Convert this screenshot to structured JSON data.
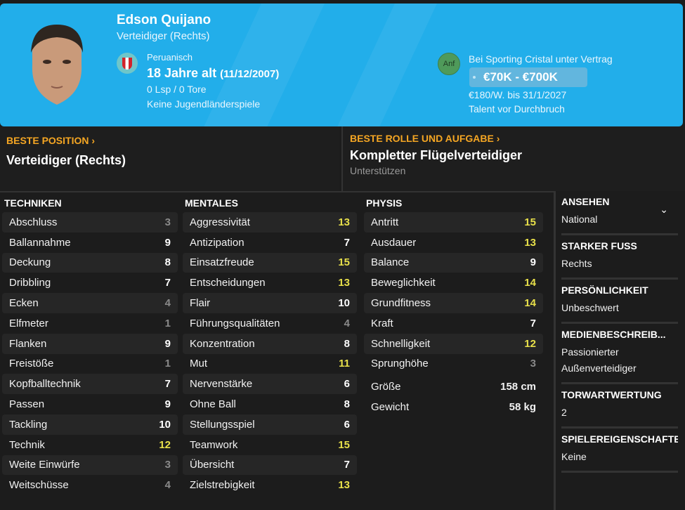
{
  "player": {
    "name": "Edson Quijano",
    "position": "Verteidiger (Rechts)",
    "nationality": "Peruanisch",
    "age": "18 Jahre alt",
    "dob": "(11/12/2007)",
    "caps": "0 Lsp / 0 Tore",
    "youth_caps": "Keine Jugendländerspiele"
  },
  "contract": {
    "badge": "Anf",
    "club": "Bei Sporting Cristal unter Vertrag",
    "value": "€70K - €700K",
    "wage": "€180/W. bis 31/1/2027",
    "status": "Talent vor Durchbruch"
  },
  "best_position": {
    "label": "BESTE POSITION",
    "value": "Verteidiger (Rechts)"
  },
  "best_role": {
    "label": "BESTE ROLLE UND AUFGABE",
    "value": "Kompletter Flügelverteidiger",
    "duty": "Unterstützen"
  },
  "colors": {
    "accent": "#22aeea",
    "high": "#e8e04a",
    "mid": "#ffffff",
    "low": "#8a8a8a",
    "label": "#f5a623"
  },
  "columns": [
    {
      "title": "TECHNIKEN",
      "rows": [
        [
          "Abschluss",
          "3"
        ],
        [
          "Ballannahme",
          "9"
        ],
        [
          "Deckung",
          "8"
        ],
        [
          "Dribbling",
          "7"
        ],
        [
          "Ecken",
          "4"
        ],
        [
          "Elfmeter",
          "1"
        ],
        [
          "Flanken",
          "9"
        ],
        [
          "Freistöße",
          "1"
        ],
        [
          "Kopfballtechnik",
          "7"
        ],
        [
          "Passen",
          "9"
        ],
        [
          "Tackling",
          "10"
        ],
        [
          "Technik",
          "12"
        ],
        [
          "Weite Einwürfe",
          "3"
        ],
        [
          "Weitschüsse",
          "4"
        ]
      ]
    },
    {
      "title": "MENTALES",
      "rows": [
        [
          "Aggressivität",
          "13"
        ],
        [
          "Antizipation",
          "7"
        ],
        [
          "Einsatzfreude",
          "15"
        ],
        [
          "Entscheidungen",
          "13"
        ],
        [
          "Flair",
          "10"
        ],
        [
          "Führungsqualitäten",
          "4"
        ],
        [
          "Konzentration",
          "8"
        ],
        [
          "Mut",
          "11"
        ],
        [
          "Nervenstärke",
          "6"
        ],
        [
          "Ohne Ball",
          "8"
        ],
        [
          "Stellungsspiel",
          "6"
        ],
        [
          "Teamwork",
          "15"
        ],
        [
          "Übersicht",
          "7"
        ],
        [
          "Zielstrebigkeit",
          "13"
        ]
      ]
    },
    {
      "title": "PHYSIS",
      "rows": [
        [
          "Antritt",
          "15"
        ],
        [
          "Ausdauer",
          "13"
        ],
        [
          "Balance",
          "9"
        ],
        [
          "Beweglichkeit",
          "14"
        ],
        [
          "Grundfitness",
          "14"
        ],
        [
          "Kraft",
          "7"
        ],
        [
          "Schnelligkeit",
          "12"
        ],
        [
          "Sprunghöhe",
          "3"
        ]
      ],
      "extra": [
        [
          "Größe",
          "158 cm"
        ],
        [
          "Gewicht",
          "58 kg"
        ]
      ]
    }
  ],
  "info": [
    {
      "title": "ANSEHEN",
      "value": "National"
    },
    {
      "title": "STARKER FUSS",
      "value": "Rechts"
    },
    {
      "title": "PERSÖNLICHKEIT",
      "value": "Unbeschwert"
    },
    {
      "title": "MEDIENBESCHREIB...",
      "value": "Passionierter Außenverteidiger"
    },
    {
      "title": "TORWARTWERTUNG",
      "value": "2"
    },
    {
      "title": "SPIELEREIGENSCHAFTEN",
      "value": "Keine"
    }
  ]
}
